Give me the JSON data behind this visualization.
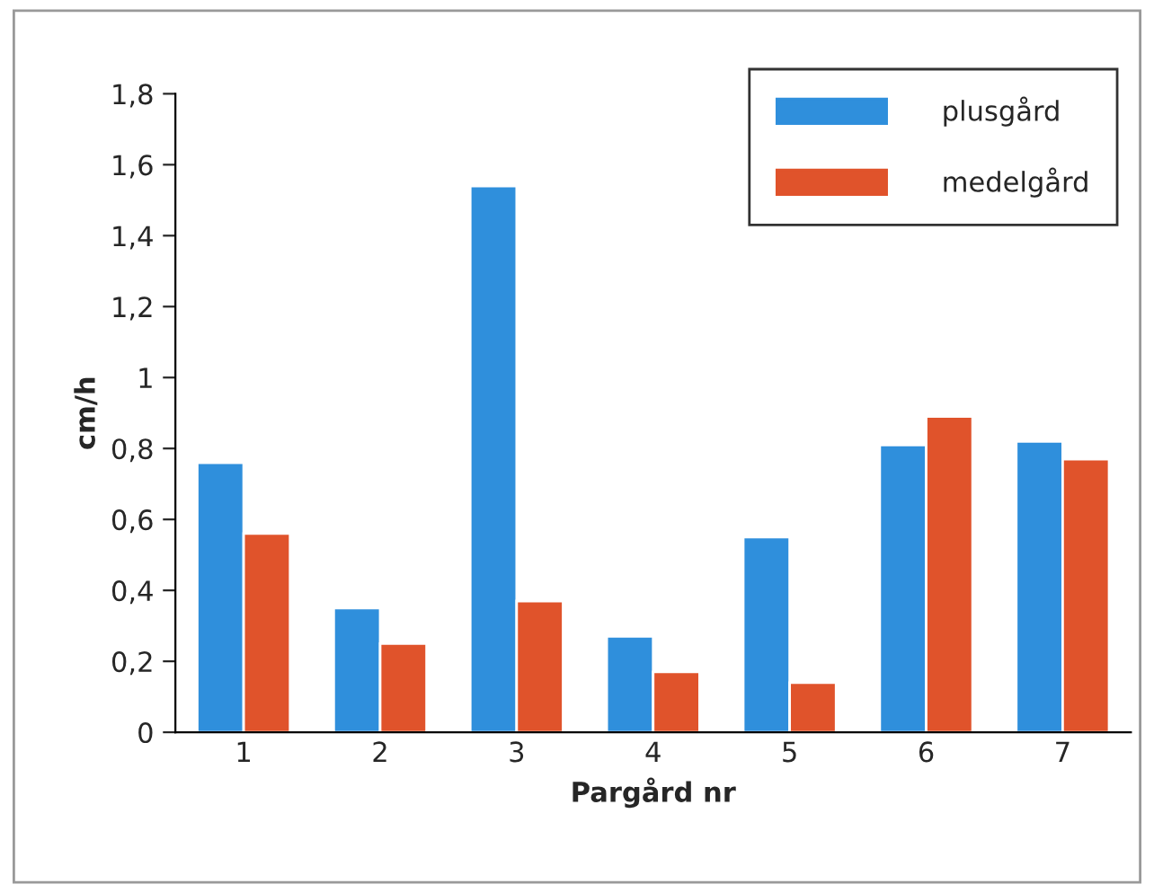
{
  "chart_data": {
    "type": "bar",
    "xlabel": "Pargård nr",
    "ylabel": "cm/h",
    "categories": [
      "1",
      "2",
      "3",
      "4",
      "5",
      "6",
      "7"
    ],
    "series": [
      {
        "name": "plusgård",
        "color": "#2f8fdc",
        "values": [
          0.76,
          0.35,
          1.54,
          0.27,
          0.55,
          0.81,
          0.82
        ]
      },
      {
        "name": "medelgård",
        "color": "#e0532b",
        "values": [
          0.56,
          0.25,
          0.37,
          0.17,
          0.14,
          0.89,
          0.77
        ]
      }
    ],
    "ylim": [
      0,
      1.8
    ],
    "yticks": [
      0,
      {
        "value": 0.2,
        "label": "0,2"
      },
      {
        "value": 0.4,
        "label": "0,4"
      },
      {
        "value": 0.6,
        "label": "0,6"
      },
      {
        "value": 0.8,
        "label": "0,8"
      },
      1,
      {
        "value": 1.2,
        "label": "1,2"
      },
      {
        "value": 1.4,
        "label": "1,4"
      },
      {
        "value": 1.6,
        "label": "1,6"
      },
      {
        "value": 1.8,
        "label": "1,8"
      }
    ],
    "grid": false,
    "legend": "top right"
  }
}
